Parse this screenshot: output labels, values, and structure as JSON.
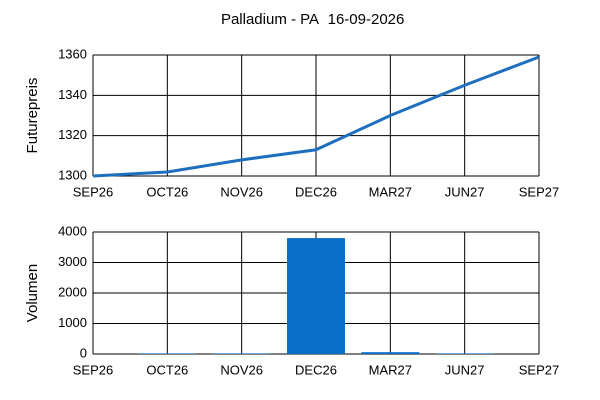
{
  "chart_data": [
    {
      "type": "line",
      "title": "Palladium - PA",
      "subtitle": "16-09-2026",
      "y_label": "Futurepreis",
      "categories": [
        "SEP26",
        "OCT26",
        "NOV26",
        "DEC26",
        "MAR27",
        "JUN27",
        "SEP27"
      ],
      "values": [
        1300,
        1302,
        1308,
        1313,
        1330,
        1345,
        1359
      ],
      "color": "#1f6fbf",
      "ylim": [
        1300,
        1360
      ],
      "yticks": [
        1300,
        1320,
        1340,
        1360
      ],
      "grid": true
    },
    {
      "type": "bar",
      "y_label": "Volumen",
      "categories": [
        "SEP26",
        "OCT26",
        "NOV26",
        "DEC26",
        "MAR27",
        "JUN27",
        "SEP27"
      ],
      "values": [
        0,
        20,
        20,
        3800,
        60,
        20,
        0
      ],
      "color": "#0a6ec8",
      "ylim": [
        0,
        4000
      ],
      "yticks": [
        0,
        1000,
        2000,
        3000,
        4000
      ],
      "grid": true
    }
  ]
}
